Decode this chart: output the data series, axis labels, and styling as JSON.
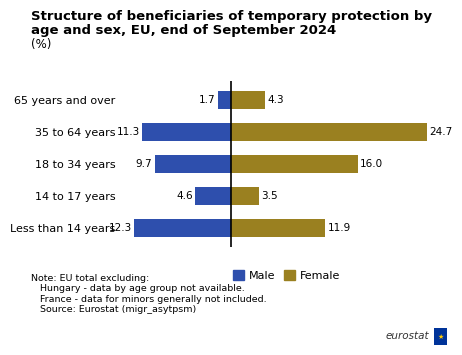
{
  "title_line1": "Structure of beneficiaries of temporary protection by",
  "title_line2": "age and sex, EU, end of September 2024",
  "subtitle": "(%)",
  "categories": [
    "65 years and over",
    "35 to 64 years",
    "18 to 34 years",
    "14 to 17 years",
    "Less than 14 years"
  ],
  "male_values": [
    1.7,
    11.3,
    9.7,
    4.6,
    12.3
  ],
  "female_values": [
    4.3,
    24.7,
    16.0,
    3.5,
    11.9
  ],
  "male_color": "#2e4fad",
  "female_color": "#9a8020",
  "background_color": "#ffffff",
  "note_lines": [
    "Note: EU total excluding:",
    "   Hungary - data by age group not available.",
    "   France - data for minors generally not included.",
    "   Source: Eurostat (migr_asytpsm)"
  ],
  "xlim_left": -14,
  "xlim_right": 28,
  "bar_height": 0.55,
  "title_fontsize": 9.5,
  "axis_fontsize": 8,
  "label_fontsize": 7.5,
  "note_fontsize": 6.8,
  "legend_fontsize": 8
}
